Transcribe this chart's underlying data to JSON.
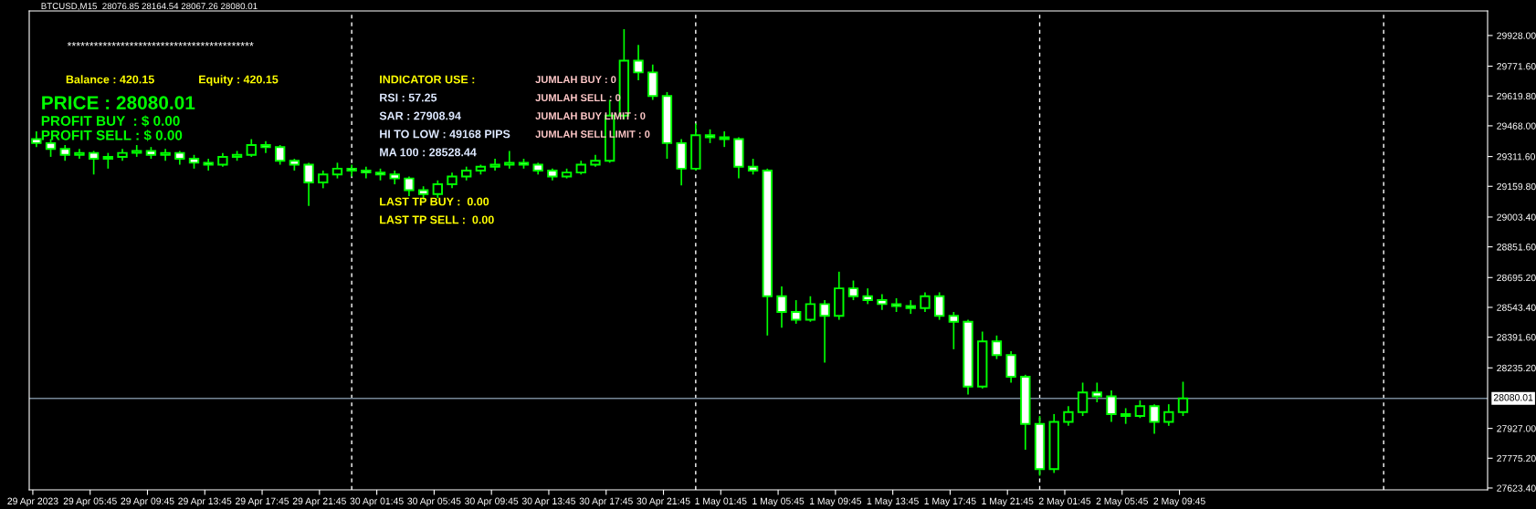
{
  "chart_data": {
    "type": "candlestick",
    "title": "BTCUSD,M15  28076.85 28164.54 28067.26 28080.01",
    "x": [
      "2023-04-29T02:00",
      "2023-04-29T03:00",
      "2023-04-29T04:00",
      "2023-04-29T05:00",
      "2023-04-29T06:00",
      "2023-04-29T07:00",
      "2023-04-29T08:00",
      "2023-04-29T09:00",
      "2023-04-29T10:00",
      "2023-04-29T11:00",
      "2023-04-29T12:00",
      "2023-04-29T13:00",
      "2023-04-29T14:00",
      "2023-04-29T15:00",
      "2023-04-29T16:00",
      "2023-04-29T17:00",
      "2023-04-29T18:00",
      "2023-04-29T19:00",
      "2023-04-29T20:00",
      "2023-04-29T21:00",
      "2023-04-29T22:00",
      "2023-04-29T23:00",
      "2023-04-30T00:00",
      "2023-04-30T01:00",
      "2023-04-30T02:00",
      "2023-04-30T03:00",
      "2023-04-30T04:00",
      "2023-04-30T05:00",
      "2023-04-30T06:00",
      "2023-04-30T07:00",
      "2023-04-30T08:00",
      "2023-04-30T09:00",
      "2023-04-30T10:00",
      "2023-04-30T11:00",
      "2023-04-30T12:00",
      "2023-04-30T13:00",
      "2023-04-30T14:00",
      "2023-04-30T15:00",
      "2023-04-30T16:00",
      "2023-04-30T17:00",
      "2023-04-30T18:00",
      "2023-04-30T19:00",
      "2023-04-30T20:00",
      "2023-04-30T21:00",
      "2023-04-30T22:00",
      "2023-04-30T23:00",
      "2023-05-01T00:00",
      "2023-05-01T01:00",
      "2023-05-01T02:00",
      "2023-05-01T03:00",
      "2023-05-01T04:00",
      "2023-05-01T05:00",
      "2023-05-01T06:00",
      "2023-05-01T07:00",
      "2023-05-01T08:00",
      "2023-05-01T09:00",
      "2023-05-01T10:00",
      "2023-05-01T11:00",
      "2023-05-01T12:00",
      "2023-05-01T13:00",
      "2023-05-01T14:00",
      "2023-05-01T15:00",
      "2023-05-01T16:00",
      "2023-05-01T17:00",
      "2023-05-01T18:00",
      "2023-05-01T19:00",
      "2023-05-01T20:00",
      "2023-05-01T21:00",
      "2023-05-01T22:00",
      "2023-05-01T23:00",
      "2023-05-02T00:00",
      "2023-05-02T01:00",
      "2023-05-02T02:00",
      "2023-05-02T03:00",
      "2023-05-02T04:00",
      "2023-05-02T05:00",
      "2023-05-02T06:00",
      "2023-05-02T07:00",
      "2023-05-02T08:00",
      "2023-05-02T09:00",
      "2023-05-02T10:00"
    ],
    "ohlc": [
      [
        29400,
        29440,
        29360,
        29380
      ],
      [
        29380,
        29400,
        29310,
        29350
      ],
      [
        29350,
        29370,
        29290,
        29320
      ],
      [
        29320,
        29350,
        29300,
        29330
      ],
      [
        29330,
        29340,
        29220,
        29300
      ],
      [
        29300,
        29330,
        29250,
        29310
      ],
      [
        29310,
        29350,
        29290,
        29330
      ],
      [
        29330,
        29370,
        29310,
        29340
      ],
      [
        29340,
        29360,
        29300,
        29320
      ],
      [
        29320,
        29350,
        29290,
        29330
      ],
      [
        29330,
        29340,
        29270,
        29300
      ],
      [
        29300,
        29320,
        29250,
        29280
      ],
      [
        29280,
        29300,
        29240,
        29270
      ],
      [
        29270,
        29330,
        29260,
        29310
      ],
      [
        29310,
        29340,
        29290,
        29320
      ],
      [
        29320,
        29400,
        29310,
        29370
      ],
      [
        29370,
        29390,
        29330,
        29360
      ],
      [
        29360,
        29370,
        29270,
        29290
      ],
      [
        29290,
        29300,
        29240,
        29270
      ],
      [
        29270,
        29280,
        29060,
        29180
      ],
      [
        29180,
        29240,
        29150,
        29220
      ],
      [
        29220,
        29280,
        29200,
        29250
      ],
      [
        29250,
        29270,
        29210,
        29240
      ],
      [
        29240,
        29260,
        29200,
        29230
      ],
      [
        29230,
        29250,
        29190,
        29220
      ],
      [
        29220,
        29240,
        29170,
        29200
      ],
      [
        29200,
        29210,
        29110,
        29140
      ],
      [
        29140,
        29160,
        29090,
        29120
      ],
      [
        29120,
        29190,
        29100,
        29170
      ],
      [
        29170,
        29230,
        29150,
        29210
      ],
      [
        29210,
        29260,
        29190,
        29240
      ],
      [
        29240,
        29270,
        29220,
        29260
      ],
      [
        29260,
        29300,
        29240,
        29270
      ],
      [
        29270,
        29340,
        29250,
        29280
      ],
      [
        29280,
        29300,
        29250,
        29270
      ],
      [
        29270,
        29280,
        29220,
        29240
      ],
      [
        29240,
        29250,
        29190,
        29210
      ],
      [
        29210,
        29250,
        29200,
        29230
      ],
      [
        29230,
        29290,
        29220,
        29270
      ],
      [
        29270,
        29320,
        29260,
        29290
      ],
      [
        29290,
        29600,
        29280,
        29520
      ],
      [
        29520,
        29960,
        29500,
        29800
      ],
      [
        29800,
        29880,
        29700,
        29740
      ],
      [
        29740,
        29780,
        29600,
        29620
      ],
      [
        29620,
        29640,
        29300,
        29380
      ],
      [
        29380,
        29400,
        29165,
        29250
      ],
      [
        29250,
        29480,
        29240,
        29420
      ],
      [
        29420,
        29450,
        29380,
        29410
      ],
      [
        29410,
        29440,
        29360,
        29400
      ],
      [
        29400,
        29410,
        29200,
        29260
      ],
      [
        29260,
        29300,
        29220,
        29240
      ],
      [
        29240,
        29250,
        28400,
        28600
      ],
      [
        28600,
        28650,
        28440,
        28520
      ],
      [
        28520,
        28580,
        28460,
        28480
      ],
      [
        28480,
        28600,
        28470,
        28560
      ],
      [
        28560,
        28580,
        28262,
        28500
      ],
      [
        28500,
        28725,
        28480,
        28640
      ],
      [
        28640,
        28680,
        28580,
        28600
      ],
      [
        28600,
        28640,
        28560,
        28580
      ],
      [
        28580,
        28610,
        28530,
        28560
      ],
      [
        28560,
        28590,
        28520,
        28550
      ],
      [
        28550,
        28580,
        28510,
        28540
      ],
      [
        28540,
        28620,
        28520,
        28600
      ],
      [
        28600,
        28620,
        28480,
        28500
      ],
      [
        28500,
        28520,
        28330,
        28470
      ],
      [
        28470,
        28480,
        28100,
        28140
      ],
      [
        28140,
        28420,
        28130,
        28370
      ],
      [
        28370,
        28400,
        28280,
        28300
      ],
      [
        28300,
        28320,
        28160,
        28190
      ],
      [
        28190,
        28200,
        27818,
        27950
      ],
      [
        27950,
        27990,
        27686,
        27720
      ],
      [
        27720,
        28000,
        27700,
        27960
      ],
      [
        27960,
        28040,
        27940,
        28010
      ],
      [
        28010,
        28160,
        27990,
        28110
      ],
      [
        28110,
        28160,
        28060,
        28090
      ],
      [
        28090,
        28120,
        27960,
        28000
      ],
      [
        28000,
        28030,
        27950,
        27990
      ],
      [
        27990,
        28070,
        27980,
        28040
      ],
      [
        28040,
        28050,
        27900,
        27960
      ],
      [
        27960,
        28050,
        27940,
        28010
      ],
      [
        28010,
        28164.54,
        27990,
        28080.01
      ]
    ],
    "color": "#00ff00",
    "xlim": [
      "2023-04-29T01:30",
      "2023-05-03T07:15"
    ],
    "xticks": [
      {
        "value": "2023-04-29T01:45",
        "label": "29 Apr 2023"
      },
      {
        "value": "2023-04-29T05:45",
        "label": "29 Apr 05:45"
      },
      {
        "value": "2023-04-29T09:45",
        "label": "29 Apr 09:45"
      },
      {
        "value": "2023-04-29T13:45",
        "label": "29 Apr 13:45"
      },
      {
        "value": "2023-04-29T17:45",
        "label": "29 Apr 17:45"
      },
      {
        "value": "2023-04-29T21:45",
        "label": "29 Apr 21:45"
      },
      {
        "value": "2023-04-30T01:45",
        "label": "30 Apr 01:45"
      },
      {
        "value": "2023-04-30T05:45",
        "label": "30 Apr 05:45"
      },
      {
        "value": "2023-04-30T09:45",
        "label": "30 Apr 09:45"
      },
      {
        "value": "2023-04-30T13:45",
        "label": "30 Apr 13:45"
      },
      {
        "value": "2023-04-30T17:45",
        "label": "30 Apr 17:45"
      },
      {
        "value": "2023-04-30T21:45",
        "label": "30 Apr 21:45"
      },
      {
        "value": "2023-05-01T01:45",
        "label": "1 May 01:45"
      },
      {
        "value": "2023-05-01T05:45",
        "label": "1 May 05:45"
      },
      {
        "value": "2023-05-01T09:45",
        "label": "1 May 09:45"
      },
      {
        "value": "2023-05-01T13:45",
        "label": "1 May 13:45"
      },
      {
        "value": "2023-05-01T17:45",
        "label": "1 May 17:45"
      },
      {
        "value": "2023-05-01T21:45",
        "label": "1 May 21:45"
      },
      {
        "value": "2023-05-02T01:45",
        "label": "2 May 01:45"
      },
      {
        "value": "2023-05-02T05:45",
        "label": "2 May 05:45"
      },
      {
        "value": "2023-05-02T09:45",
        "label": "2 May 09:45"
      }
    ],
    "ylim": [
      27614,
      30053
    ],
    "yticks": [
      {
        "value": 27623.4,
        "label": "27623.40"
      },
      {
        "value": 27775.2,
        "label": "27775.20"
      },
      {
        "value": 27927,
        "label": "27927.00"
      },
      {
        "value": 28235.2,
        "label": "28235.20"
      },
      {
        "value": 28391.6,
        "label": "28391.60"
      },
      {
        "value": 28543.4,
        "label": "28543.40"
      },
      {
        "value": 28695.2,
        "label": "28695.20"
      },
      {
        "value": 28851.6,
        "label": "28851.60"
      },
      {
        "value": 29003.4,
        "label": "29003.40"
      },
      {
        "value": 29159.8,
        "label": "29159.80"
      },
      {
        "value": 29311.6,
        "label": "29311.60"
      },
      {
        "value": 29468,
        "label": "29468.00"
      },
      {
        "value": 29619.8,
        "label": "29619.80"
      },
      {
        "value": 29771.6,
        "label": "29771.60"
      },
      {
        "value": 29928,
        "label": "29928.00"
      }
    ],
    "ref_lines": [
      {
        "axis": "x",
        "value": "2023-04-30T00:00",
        "color": "#ffffff",
        "line_style": "dashed"
      },
      {
        "axis": "x",
        "value": "2023-05-01T00:00",
        "color": "#ffffff",
        "line_style": "dashed"
      },
      {
        "axis": "x",
        "value": "2023-05-02T00:00",
        "color": "#ffffff",
        "line_style": "dashed"
      },
      {
        "axis": "x",
        "value": "2023-05-03T00:00",
        "color": "#ffffff",
        "line_style": "dashed"
      },
      {
        "axis": "y",
        "value": 28080.01,
        "label": "28080.01",
        "color": "#778899",
        "line_style": "solid"
      }
    ],
    "grid": false,
    "legend": false,
    "annotations": [
      "******************************************",
      "Balance : 420.15",
      "Equity : 420.15",
      "PRICE : 28080.01",
      "PROFIT BUY  : $ 0.00",
      "PROFIT SELL : $ 0.00",
      "INDICATOR USE :",
      "RSI : 57.25",
      "SAR : 27908.94",
      "HI TO LOW : 49168 PIPS",
      "MA 100 : 28528.44",
      "LAST TP BUY :  0.00",
      "LAST TP SELL :  0.00",
      "JUMLAH BUY : 0",
      "JUMLAH SELL : 0",
      "JUMLAH BUY LIMIT : 0",
      "JUMLAH SELL LIMIT : 0"
    ]
  }
}
